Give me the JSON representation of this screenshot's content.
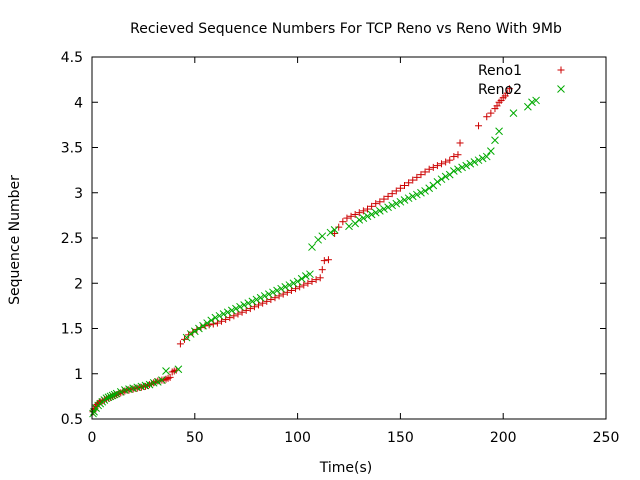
{
  "chart_data": {
    "type": "scatter",
    "title": "Recieved Sequence Numbers For TCP Reno vs Reno With 9Mb",
    "xlabel": "Time(s)",
    "ylabel": "Sequence Number",
    "xlim": [
      0,
      250
    ],
    "ylim": [
      0.5,
      4.5
    ],
    "xticks": [
      0,
      50,
      100,
      150,
      200,
      250
    ],
    "yticks": [
      0.5,
      1,
      1.5,
      2,
      2.5,
      3,
      3.5,
      4,
      4.5
    ],
    "grid": false,
    "legend": "top-right",
    "series": [
      {
        "name": "Reno1",
        "marker": "plus",
        "color": "#cc0000",
        "points": [
          [
            0.5,
            0.58
          ],
          [
            1,
            0.6
          ],
          [
            1.5,
            0.62
          ],
          [
            2,
            0.64
          ],
          [
            2.5,
            0.66
          ],
          [
            3,
            0.67
          ],
          [
            3.5,
            0.68
          ],
          [
            4,
            0.69
          ],
          [
            5,
            0.7
          ],
          [
            6,
            0.71
          ],
          [
            7,
            0.72
          ],
          [
            8,
            0.73
          ],
          [
            9,
            0.74
          ],
          [
            10,
            0.75
          ],
          [
            11,
            0.76
          ],
          [
            12,
            0.77
          ],
          [
            13,
            0.78
          ],
          [
            14,
            0.79
          ],
          [
            15,
            0.8
          ],
          [
            16,
            0.81
          ],
          [
            17,
            0.82
          ],
          [
            18,
            0.82
          ],
          [
            19,
            0.83
          ],
          [
            20,
            0.83
          ],
          [
            21,
            0.84
          ],
          [
            22,
            0.84
          ],
          [
            23,
            0.85
          ],
          [
            24,
            0.85
          ],
          [
            25,
            0.86
          ],
          [
            26,
            0.86
          ],
          [
            27,
            0.87
          ],
          [
            28,
            0.88
          ],
          [
            29,
            0.89
          ],
          [
            30,
            0.9
          ],
          [
            31,
            0.91
          ],
          [
            32,
            0.92
          ],
          [
            33,
            0.92
          ],
          [
            34,
            0.93
          ],
          [
            35,
            0.93
          ],
          [
            36,
            0.94
          ],
          [
            37,
            0.95
          ],
          [
            38,
            0.96
          ],
          [
            39,
            1.02
          ],
          [
            40,
            1.03
          ],
          [
            41,
            1.04
          ],
          [
            43,
            1.33
          ],
          [
            45,
            1.38
          ],
          [
            47,
            1.43
          ],
          [
            49,
            1.46
          ],
          [
            51,
            1.49
          ],
          [
            53,
            1.51
          ],
          [
            55,
            1.53
          ],
          [
            57,
            1.54
          ],
          [
            59,
            1.55
          ],
          [
            61,
            1.56
          ],
          [
            63,
            1.58
          ],
          [
            65,
            1.6
          ],
          [
            67,
            1.62
          ],
          [
            69,
            1.64
          ],
          [
            71,
            1.66
          ],
          [
            73,
            1.68
          ],
          [
            75,
            1.7
          ],
          [
            77,
            1.72
          ],
          [
            79,
            1.74
          ],
          [
            81,
            1.76
          ],
          [
            83,
            1.78
          ],
          [
            85,
            1.8
          ],
          [
            87,
            1.82
          ],
          [
            89,
            1.84
          ],
          [
            91,
            1.86
          ],
          [
            93,
            1.88
          ],
          [
            95,
            1.9
          ],
          [
            97,
            1.92
          ],
          [
            99,
            1.94
          ],
          [
            101,
            1.96
          ],
          [
            103,
            1.98
          ],
          [
            105,
            2.0
          ],
          [
            107,
            2.02
          ],
          [
            109,
            2.04
          ],
          [
            111,
            2.06
          ],
          [
            112,
            2.15
          ],
          [
            113,
            2.25
          ],
          [
            115,
            2.26
          ],
          [
            118,
            2.55
          ],
          [
            120,
            2.62
          ],
          [
            122,
            2.68
          ],
          [
            124,
            2.72
          ],
          [
            126,
            2.74
          ],
          [
            128,
            2.76
          ],
          [
            130,
            2.78
          ],
          [
            132,
            2.8
          ],
          [
            134,
            2.82
          ],
          [
            136,
            2.85
          ],
          [
            138,
            2.88
          ],
          [
            140,
            2.9
          ],
          [
            142,
            2.93
          ],
          [
            144,
            2.96
          ],
          [
            146,
            2.99
          ],
          [
            148,
            3.02
          ],
          [
            150,
            3.05
          ],
          [
            152,
            3.08
          ],
          [
            154,
            3.11
          ],
          [
            156,
            3.14
          ],
          [
            158,
            3.17
          ],
          [
            160,
            3.2
          ],
          [
            162,
            3.23
          ],
          [
            164,
            3.26
          ],
          [
            166,
            3.28
          ],
          [
            168,
            3.3
          ],
          [
            170,
            3.32
          ],
          [
            172,
            3.34
          ],
          [
            174,
            3.36
          ],
          [
            176,
            3.4
          ],
          [
            178,
            3.42
          ],
          [
            179,
            3.55
          ],
          [
            188,
            3.74
          ],
          [
            192,
            3.84
          ],
          [
            194,
            3.88
          ],
          [
            196,
            3.93
          ],
          [
            197,
            3.96
          ],
          [
            198,
            4.0
          ],
          [
            199,
            4.02
          ],
          [
            200,
            4.05
          ],
          [
            201,
            4.07
          ],
          [
            202,
            4.1
          ],
          [
            203,
            4.15
          ]
        ]
      },
      {
        "name": "Reno2",
        "marker": "x",
        "color": "#00aa00",
        "points": [
          [
            0.5,
            0.56
          ],
          [
            1,
            0.58
          ],
          [
            2,
            0.62
          ],
          [
            3,
            0.65
          ],
          [
            4,
            0.67
          ],
          [
            5,
            0.69
          ],
          [
            6,
            0.71
          ],
          [
            7,
            0.73
          ],
          [
            8,
            0.74
          ],
          [
            9,
            0.75
          ],
          [
            10,
            0.76
          ],
          [
            11,
            0.77
          ],
          [
            12,
            0.78
          ],
          [
            14,
            0.8
          ],
          [
            16,
            0.82
          ],
          [
            18,
            0.83
          ],
          [
            20,
            0.84
          ],
          [
            22,
            0.85
          ],
          [
            24,
            0.86
          ],
          [
            26,
            0.87
          ],
          [
            28,
            0.88
          ],
          [
            30,
            0.9
          ],
          [
            32,
            0.91
          ],
          [
            34,
            0.93
          ],
          [
            36,
            1.03
          ],
          [
            42,
            1.05
          ],
          [
            46,
            1.4
          ],
          [
            48,
            1.44
          ],
          [
            50,
            1.47
          ],
          [
            52,
            1.5
          ],
          [
            54,
            1.53
          ],
          [
            56,
            1.56
          ],
          [
            58,
            1.59
          ],
          [
            60,
            1.62
          ],
          [
            62,
            1.64
          ],
          [
            64,
            1.66
          ],
          [
            66,
            1.68
          ],
          [
            68,
            1.7
          ],
          [
            70,
            1.72
          ],
          [
            72,
            1.74
          ],
          [
            74,
            1.76
          ],
          [
            76,
            1.78
          ],
          [
            78,
            1.8
          ],
          [
            80,
            1.82
          ],
          [
            82,
            1.84
          ],
          [
            84,
            1.86
          ],
          [
            86,
            1.88
          ],
          [
            88,
            1.9
          ],
          [
            90,
            1.92
          ],
          [
            92,
            1.94
          ],
          [
            94,
            1.96
          ],
          [
            96,
            1.98
          ],
          [
            98,
            2.0
          ],
          [
            100,
            2.02
          ],
          [
            102,
            2.05
          ],
          [
            104,
            2.08
          ],
          [
            106,
            2.1
          ],
          [
            107,
            2.4
          ],
          [
            110,
            2.48
          ],
          [
            112,
            2.52
          ],
          [
            116,
            2.56
          ],
          [
            118,
            2.59
          ],
          [
            125,
            2.63
          ],
          [
            128,
            2.66
          ],
          [
            130,
            2.7
          ],
          [
            132,
            2.72
          ],
          [
            134,
            2.74
          ],
          [
            136,
            2.76
          ],
          [
            138,
            2.78
          ],
          [
            140,
            2.8
          ],
          [
            142,
            2.82
          ],
          [
            144,
            2.84
          ],
          [
            146,
            2.86
          ],
          [
            148,
            2.88
          ],
          [
            150,
            2.9
          ],
          [
            152,
            2.92
          ],
          [
            154,
            2.94
          ],
          [
            156,
            2.96
          ],
          [
            158,
            2.98
          ],
          [
            160,
            3.0
          ],
          [
            162,
            3.02
          ],
          [
            164,
            3.05
          ],
          [
            166,
            3.08
          ],
          [
            168,
            3.12
          ],
          [
            170,
            3.15
          ],
          [
            172,
            3.18
          ],
          [
            174,
            3.2
          ],
          [
            176,
            3.24
          ],
          [
            178,
            3.26
          ],
          [
            180,
            3.28
          ],
          [
            182,
            3.3
          ],
          [
            184,
            3.32
          ],
          [
            186,
            3.34
          ],
          [
            188,
            3.36
          ],
          [
            190,
            3.38
          ],
          [
            192,
            3.4
          ],
          [
            194,
            3.46
          ],
          [
            196,
            3.58
          ],
          [
            198,
            3.68
          ],
          [
            205,
            3.88
          ],
          [
            212,
            3.95
          ],
          [
            214,
            4.0
          ],
          [
            216,
            4.02
          ]
        ]
      }
    ]
  }
}
